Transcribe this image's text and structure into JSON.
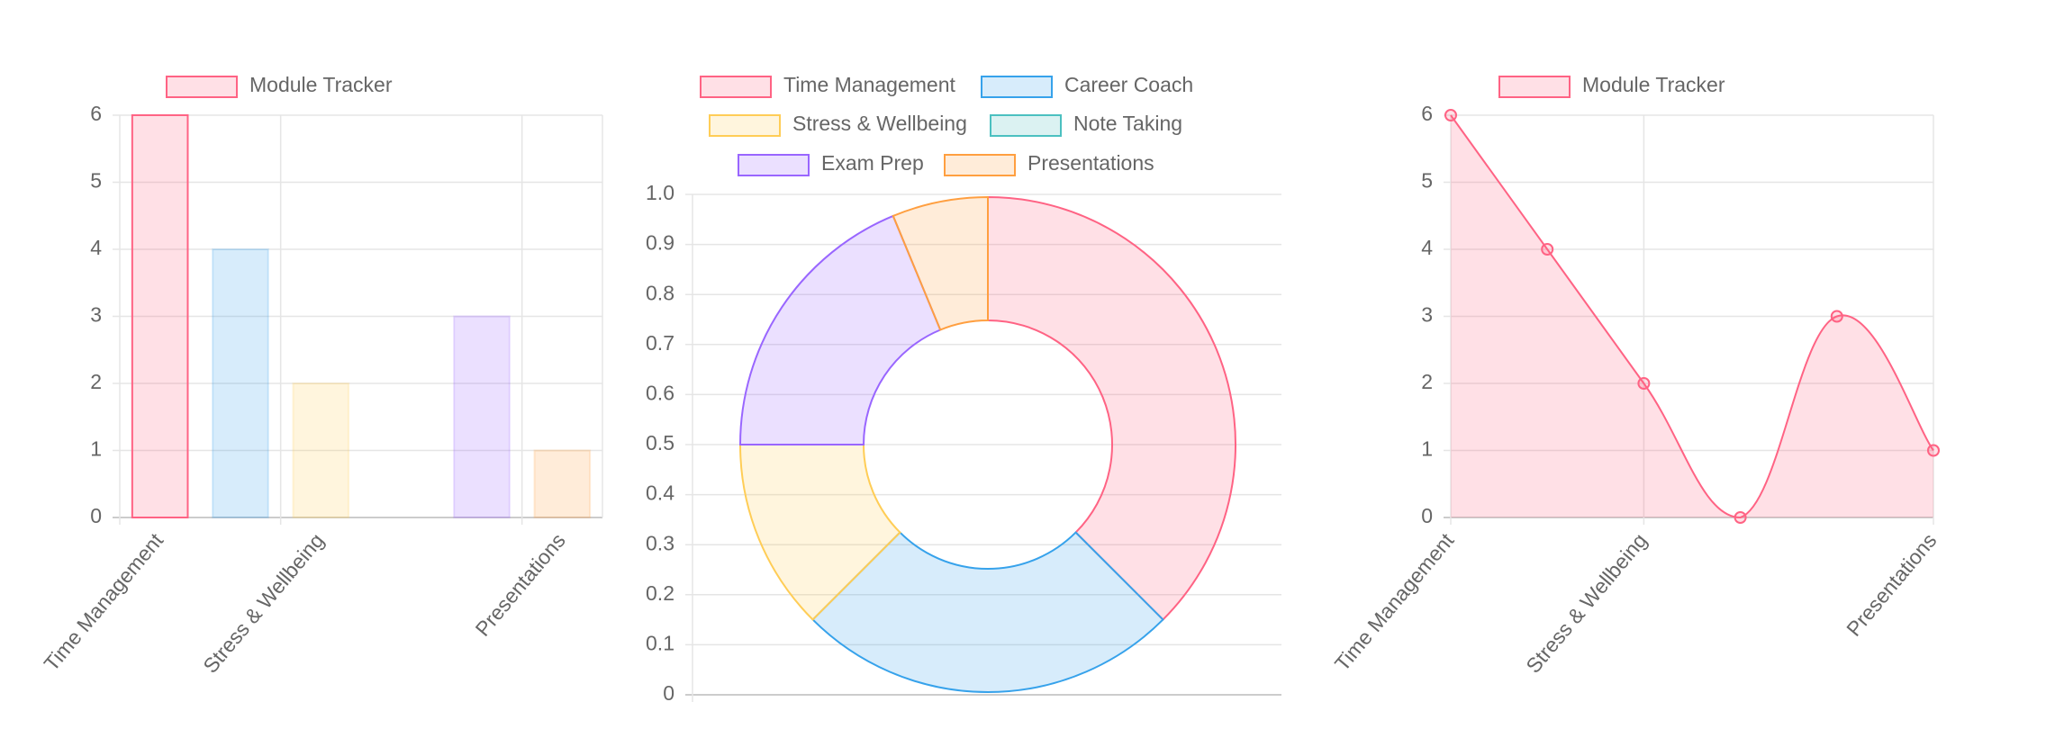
{
  "chart_data": [
    {
      "type": "bar",
      "categories": [
        "Time Management",
        null,
        "Stress & Wellbeing",
        null,
        null,
        "Presentations"
      ],
      "series": [
        {
          "name": "Module Tracker",
          "colors": [
            "rgba(255,99,132,0.2)",
            "rgba(54,162,235,0.2)",
            "rgba(255,206,86,0.2)",
            "rgba(75,192,192,0.2)",
            "rgba(153,102,255,0.2)",
            "rgba(255,159,64,0.2)"
          ],
          "border_colors": [
            "#ff6384",
            "rgba(54,162,235,0.2)",
            "rgba(255,206,86,0.2)",
            "rgba(75,192,192,0.2)",
            "rgba(153,102,255,0.2)",
            "rgba(255,159,64,0.2)"
          ],
          "values": [
            6,
            4,
            2,
            0,
            3,
            1
          ]
        }
      ],
      "ylim": [
        0,
        6
      ],
      "yticks": [
        0,
        1,
        2,
        3,
        4,
        5,
        6
      ],
      "grid": true
    },
    {
      "type": "doughnut",
      "categories": [
        "Time Management",
        "Career Coach",
        "Stress & Wellbeing",
        "Note Taking",
        "Exam Prep",
        "Presentations"
      ],
      "values": [
        6,
        4,
        2,
        0,
        3,
        1
      ],
      "colors": [
        "rgba(255,99,132,0.2)",
        "rgba(54,162,235,0.2)",
        "rgba(255,206,86,0.2)",
        "rgba(75,192,192,0.2)",
        "rgba(153,102,255,0.2)",
        "rgba(255,159,64,0.2)"
      ],
      "border_colors": [
        "#ff6384",
        "#36a2eb",
        "#ffcd56",
        "#4bc0c0",
        "#9966ff",
        "#ff9f40"
      ],
      "ylim": [
        0,
        1
      ],
      "yticks": [
        0,
        0.1,
        0.2,
        0.3,
        0.4,
        0.5,
        0.6,
        0.7,
        0.8,
        0.9,
        {
          "value": 1,
          "label": "1.0"
        }
      ],
      "grid": true
    },
    {
      "type": "line",
      "categories": [
        "Time Management",
        null,
        "Stress & Wellbeing",
        null,
        null,
        "Presentations"
      ],
      "series": [
        {
          "name": "Module Tracker",
          "color": "#ff6384",
          "fill": "rgba(255,99,132,0.2)",
          "values": [
            6,
            4,
            2,
            0,
            3,
            1
          ]
        }
      ],
      "ylim": [
        0,
        6
      ],
      "yticks": [
        0,
        1,
        2,
        3,
        4,
        5,
        6
      ],
      "grid": true
    }
  ]
}
